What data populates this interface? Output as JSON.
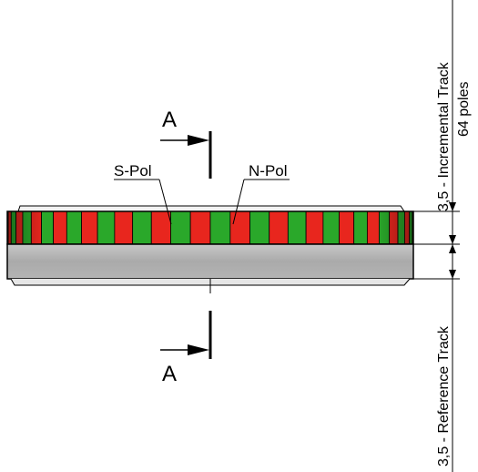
{
  "section_marker": {
    "top_label": "A",
    "bottom_label": "A"
  },
  "labels": {
    "s_pole": "S-Pol",
    "n_pole": "N-Pol"
  },
  "dimensions": {
    "incremental_track_line1": "3,5 - Incremental Track",
    "incremental_track_line2": "64 poles",
    "reference_track": "3,5 - Reference Track"
  },
  "colors": {
    "north_pole": "#e8261e",
    "south_pole": "#2aa82a",
    "reference_track": "#a8a8a8",
    "outline": "#000000"
  },
  "visible_poles_count": 32
}
